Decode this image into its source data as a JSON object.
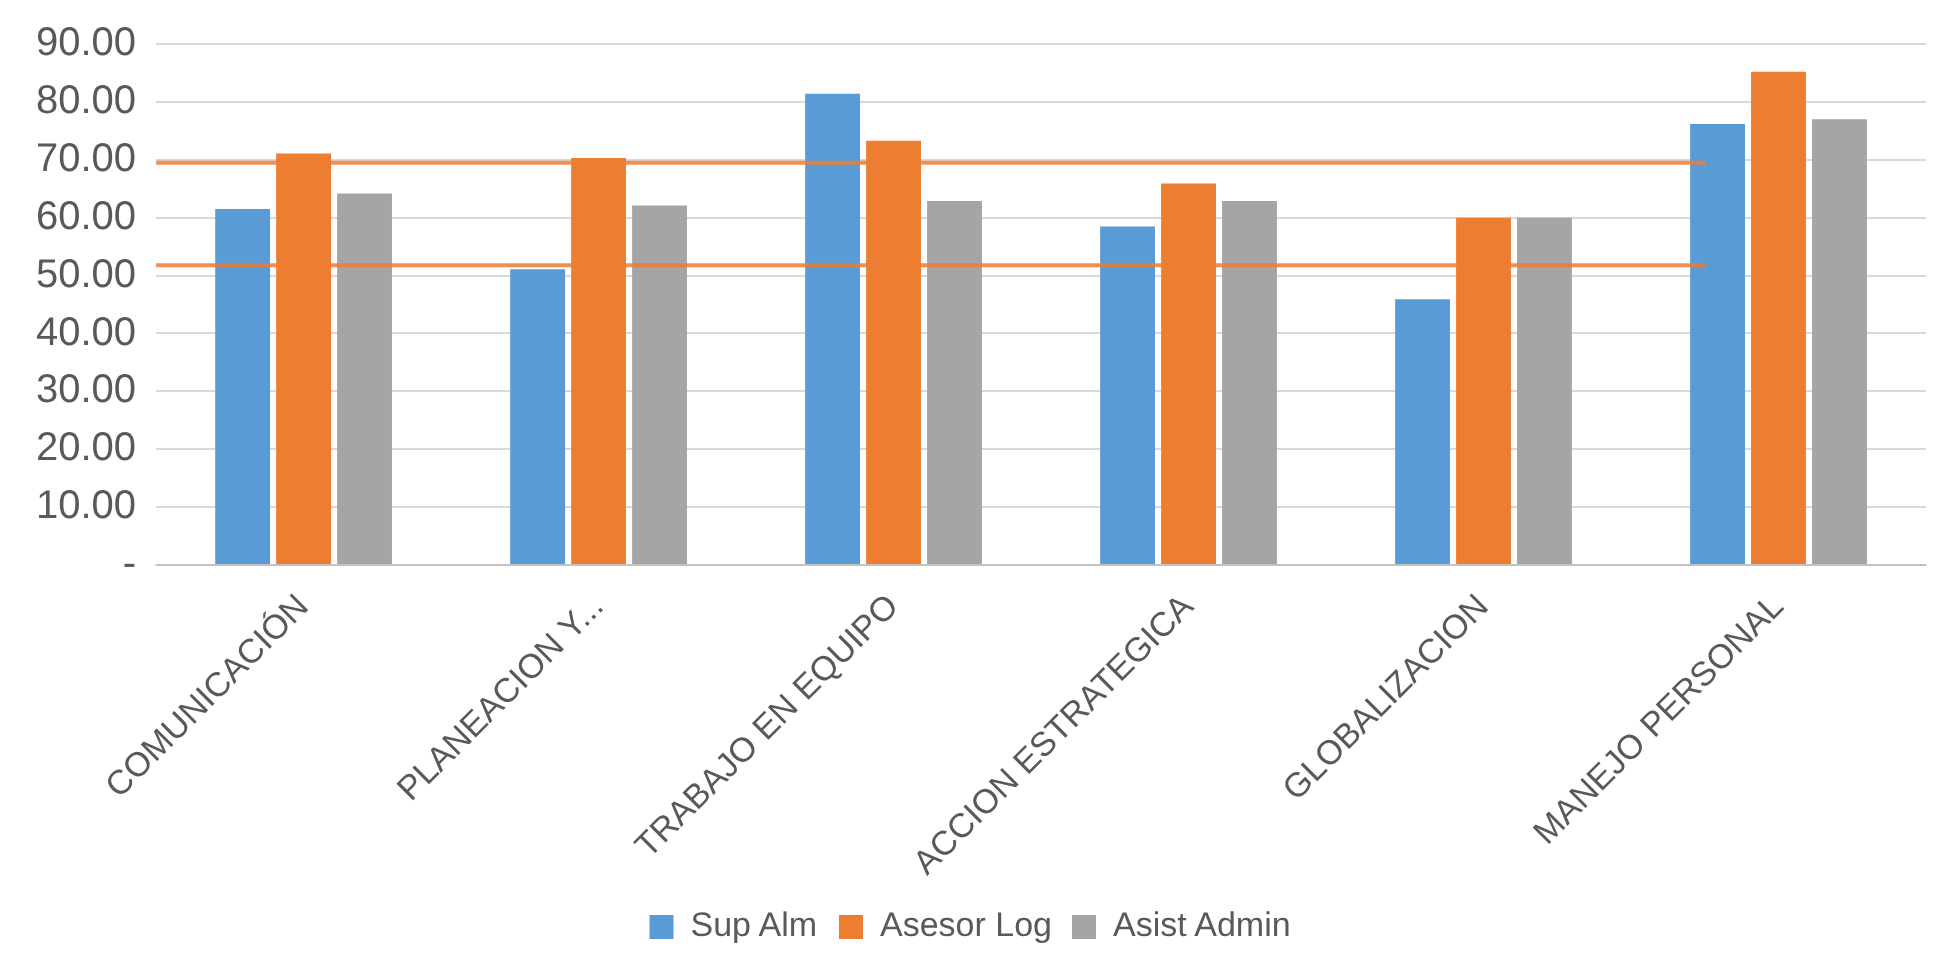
{
  "chart_data": {
    "type": "bar",
    "categories": [
      "COMUNICACIÓN",
      "PLANEACION Y...",
      "TRABAJO EN EQUIPO",
      "ACCION ESTRATEGICA",
      "GLOBALIZACION",
      "MANEJO PERSONAL"
    ],
    "series": [
      {
        "name": "Sup Alm",
        "color": "#5b9bd5",
        "values": [
          61.5,
          51.1,
          81.4,
          58.5,
          45.9,
          76.2
        ]
      },
      {
        "name": "Asesor Log",
        "color": "#ed7d31",
        "values": [
          71.1,
          70.3,
          73.3,
          65.9,
          60.0,
          85.2
        ]
      },
      {
        "name": "Asist Admin",
        "color": "#a5a5a5",
        "values": [
          64.2,
          62.1,
          62.9,
          62.9,
          60.0,
          77.0
        ]
      }
    ],
    "ylim": [
      0,
      90
    ],
    "yticks": [
      {
        "value": 0,
        "label": "-"
      },
      {
        "value": 10,
        "label": "10.00"
      },
      {
        "value": 20,
        "label": "20.00"
      },
      {
        "value": 30,
        "label": "30.00"
      },
      {
        "value": 40,
        "label": "40.00"
      },
      {
        "value": 50,
        "label": "50.00"
      },
      {
        "value": 60,
        "label": "60.00"
      },
      {
        "value": 70,
        "label": "70.00"
      },
      {
        "value": 80,
        "label": "80.00"
      },
      {
        "value": 90,
        "label": "90.00"
      }
    ],
    "ref_lines": [
      {
        "axis": "y",
        "value": 69.5,
        "color": "#ed7d31"
      },
      {
        "axis": "y",
        "value": 51.8,
        "color": "#ed7d31"
      }
    ],
    "grid": "y",
    "legend": "bottom"
  }
}
